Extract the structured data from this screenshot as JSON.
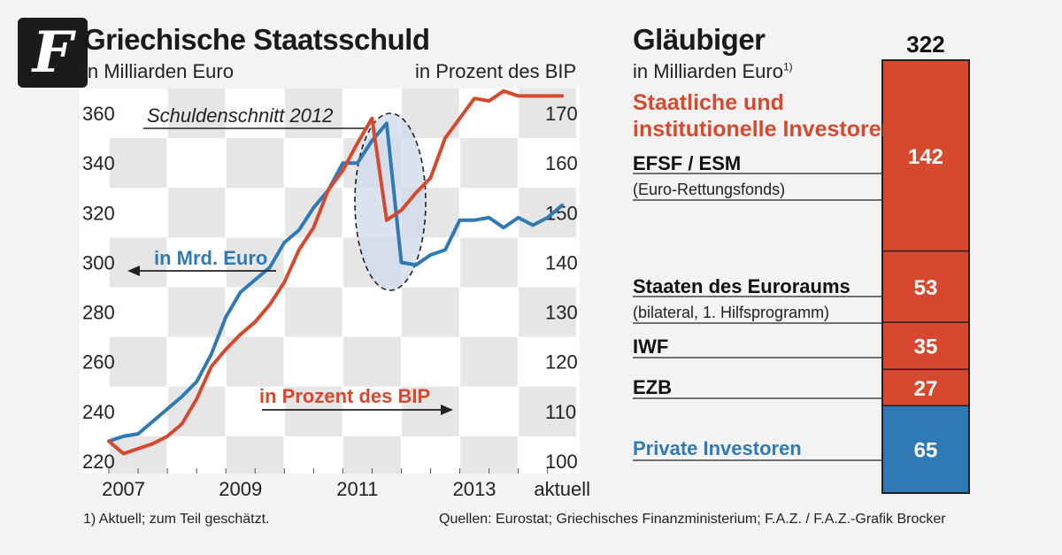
{
  "logo": {
    "glyph": "F",
    "icon": "faz-logo-icon"
  },
  "left_title": "Griechische Staatsschuld",
  "left_subtitle": "in Milliarden Euro",
  "right_axis_title": "in Prozent des BIP",
  "right_title": "Gläubiger",
  "right_subtitle": "in Milliarden Euro",
  "right_subtitle_note": "1)",
  "footnote": "1) Aktuell; zum Teil geschätzt.",
  "source": "Quellen: Eurostat; Griechisches Finanzministerium; F.A.Z. / F.A.Z.-Grafik Brocker",
  "colors": {
    "blue": "#2f7ab4",
    "red": "#d6492f",
    "ellipse": "#cdd9ea"
  },
  "chart_data": [
    {
      "type": "line",
      "xlabels": [
        "2007",
        "2009",
        "2011",
        "2013",
        "aktuell"
      ],
      "y_left": {
        "ticks": [
          220,
          240,
          260,
          280,
          300,
          320,
          340,
          360
        ],
        "lim": [
          215,
          370
        ]
      },
      "y_right": {
        "ticks": [
          100,
          110,
          120,
          130,
          140,
          150,
          160,
          170
        ],
        "lim": [
          97.5,
          175
        ]
      },
      "annotation": "Schuldenschnitt 2012",
      "grid": true,
      "series": [
        {
          "name": "in Mrd. Euro",
          "axis": "left",
          "color": "#2f7ab4",
          "x": [
            2006.75,
            2007.0,
            2007.25,
            2007.5,
            2007.75,
            2008.0,
            2008.25,
            2008.5,
            2008.75,
            2009.0,
            2009.25,
            2009.5,
            2009.75,
            2010.0,
            2010.25,
            2010.5,
            2010.75,
            2011.0,
            2011.25,
            2011.5,
            2011.75,
            2012.0,
            2012.25,
            2012.5,
            2012.75,
            2013.0,
            2013.25,
            2013.5,
            2013.75,
            2014.0,
            2014.25,
            2014.5
          ],
          "values": [
            228,
            230,
            231,
            236,
            241,
            246,
            252,
            263,
            278,
            288,
            293,
            298,
            308,
            313,
            322,
            329,
            340,
            340,
            349,
            356,
            300,
            299,
            303,
            305,
            317,
            317,
            318,
            314,
            318,
            315,
            318,
            323
          ]
        },
        {
          "name": "in Prozent des BIP",
          "axis": "right",
          "color": "#d6492f",
          "x": [
            2006.75,
            2007.0,
            2007.25,
            2007.5,
            2007.75,
            2008.0,
            2008.25,
            2008.5,
            2008.75,
            2009.0,
            2009.25,
            2009.5,
            2009.75,
            2010.0,
            2010.25,
            2010.5,
            2010.75,
            2011.0,
            2011.25,
            2011.5,
            2011.75,
            2012.0,
            2012.25,
            2012.5,
            2012.75,
            2013.0,
            2013.25,
            2013.5,
            2013.75,
            2014.0,
            2014.25,
            2014.5
          ],
          "values": [
            104,
            101.5,
            102.5,
            103.5,
            105,
            107.5,
            112.5,
            119,
            122.5,
            125.5,
            128,
            131.5,
            136,
            142.5,
            147,
            154.5,
            158.5,
            164,
            169,
            148.5,
            150.5,
            154,
            157,
            165,
            169,
            173,
            172.5,
            174.5,
            173.5,
            173.5,
            173.5,
            173.5
          ]
        }
      ]
    },
    {
      "type": "bar",
      "stacked": true,
      "total": "322",
      "group_label": "Staatliche und institutionelle Investoren",
      "segments": [
        {
          "name": "EFSF / ESM",
          "note": "(Euro-Rettungsfonds)",
          "value": 142,
          "color": "#d6492f"
        },
        {
          "name": "Staaten des Euroraums",
          "note": "(bilateral, 1. Hilfsprogramm)",
          "value": 53,
          "color": "#d6492f"
        },
        {
          "name": "IWF",
          "note": "",
          "value": 35,
          "color": "#d6492f"
        },
        {
          "name": "EZB",
          "note": "",
          "value": 27,
          "color": "#d6492f"
        },
        {
          "name": "Private Investoren",
          "note": "",
          "value": 65,
          "color": "#2f7ab4"
        }
      ]
    }
  ]
}
